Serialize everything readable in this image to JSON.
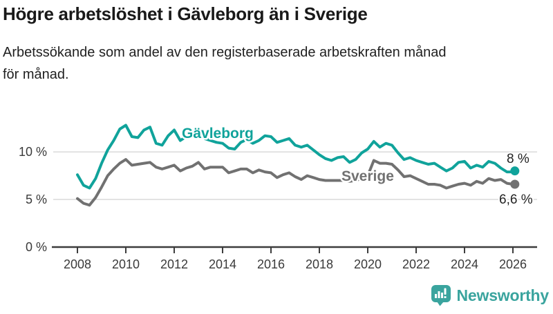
{
  "header": {
    "title": "Högre arbetslöshet i Gävleborg än i Sverige",
    "subtitle_lines": [
      "Arbetssökande som andel av den registerbaserade arbetskraften månad",
      "för månad."
    ]
  },
  "chart_data": {
    "type": "line",
    "title": "Högre arbetslöshet i Gävleborg än i Sverige",
    "subtitle": "Arbetssökande som andel av den registerbaserade arbetskraften månad för månad.",
    "xlabel": "",
    "ylabel": "",
    "x_unit": "decimal_year",
    "xlim": [
      2007.9,
      2027.0
    ],
    "ylim": [
      0,
      13.5
    ],
    "grid": "horizontal-only",
    "legend_position": "inline-labels",
    "yticks": [
      {
        "value": 0,
        "label": "0 %"
      },
      {
        "value": 5,
        "label": "5 %"
      },
      {
        "value": 10,
        "label": "10 %"
      }
    ],
    "xticks": [
      {
        "value": 2008,
        "label": "2008"
      },
      {
        "value": 2010,
        "label": "2010"
      },
      {
        "value": 2012,
        "label": "2012"
      },
      {
        "value": 2014,
        "label": "2014"
      },
      {
        "value": 2016,
        "label": "2016"
      },
      {
        "value": 2018,
        "label": "2018"
      },
      {
        "value": 2020,
        "label": "2020"
      },
      {
        "value": 2022,
        "label": "2022"
      },
      {
        "value": 2024,
        "label": "2024"
      },
      {
        "value": 2026,
        "label": "2026"
      }
    ],
    "series": [
      {
        "name": "Gävleborg",
        "color": "#10A39B",
        "end_label": "8 %",
        "end_value": 8.0,
        "points": [
          [
            2008.0,
            7.6
          ],
          [
            2008.25,
            6.5
          ],
          [
            2008.5,
            6.2
          ],
          [
            2008.75,
            7.2
          ],
          [
            2009.0,
            8.8
          ],
          [
            2009.25,
            10.2
          ],
          [
            2009.5,
            11.2
          ],
          [
            2009.75,
            12.4
          ],
          [
            2010.0,
            12.8
          ],
          [
            2010.25,
            11.6
          ],
          [
            2010.5,
            11.5
          ],
          [
            2010.75,
            12.3
          ],
          [
            2011.0,
            12.6
          ],
          [
            2011.25,
            10.9
          ],
          [
            2011.5,
            10.7
          ],
          [
            2011.75,
            11.7
          ],
          [
            2012.0,
            12.3
          ],
          [
            2012.25,
            11.2
          ],
          [
            2012.5,
            11.6
          ],
          [
            2012.75,
            12.0
          ],
          [
            2013.0,
            12.4
          ],
          [
            2013.25,
            11.4
          ],
          [
            2013.5,
            11.2
          ],
          [
            2013.75,
            11.0
          ],
          [
            2014.0,
            10.9
          ],
          [
            2014.25,
            10.4
          ],
          [
            2014.5,
            10.3
          ],
          [
            2014.75,
            11.0
          ],
          [
            2015.0,
            11.3
          ],
          [
            2015.25,
            10.9
          ],
          [
            2015.5,
            11.2
          ],
          [
            2015.75,
            11.7
          ],
          [
            2016.0,
            11.6
          ],
          [
            2016.25,
            11.0
          ],
          [
            2016.5,
            11.2
          ],
          [
            2016.75,
            11.4
          ],
          [
            2017.0,
            10.7
          ],
          [
            2017.25,
            10.5
          ],
          [
            2017.5,
            10.7
          ],
          [
            2017.75,
            10.2
          ],
          [
            2018.0,
            9.7
          ],
          [
            2018.25,
            9.3
          ],
          [
            2018.5,
            9.1
          ],
          [
            2018.75,
            9.4
          ],
          [
            2019.0,
            9.5
          ],
          [
            2019.25,
            8.9
          ],
          [
            2019.5,
            9.2
          ],
          [
            2019.75,
            9.9
          ],
          [
            2020.0,
            10.3
          ],
          [
            2020.25,
            11.1
          ],
          [
            2020.5,
            10.5
          ],
          [
            2020.75,
            10.9
          ],
          [
            2021.0,
            10.7
          ],
          [
            2021.25,
            9.9
          ],
          [
            2021.5,
            9.2
          ],
          [
            2021.75,
            9.4
          ],
          [
            2022.0,
            9.1
          ],
          [
            2022.25,
            8.9
          ],
          [
            2022.5,
            8.7
          ],
          [
            2022.75,
            8.8
          ],
          [
            2023.0,
            8.4
          ],
          [
            2023.25,
            8.0
          ],
          [
            2023.5,
            8.3
          ],
          [
            2023.75,
            8.9
          ],
          [
            2024.0,
            9.0
          ],
          [
            2024.25,
            8.3
          ],
          [
            2024.5,
            8.6
          ],
          [
            2024.75,
            8.4
          ],
          [
            2025.0,
            9.0
          ],
          [
            2025.25,
            8.8
          ],
          [
            2025.5,
            8.3
          ],
          [
            2025.75,
            7.9
          ],
          [
            2026.0,
            7.9
          ],
          [
            2026.08,
            8.0
          ]
        ]
      },
      {
        "name": "Sverige",
        "color": "#717171",
        "end_label": "6,6 %",
        "end_value": 6.6,
        "points": [
          [
            2008.0,
            5.1
          ],
          [
            2008.25,
            4.6
          ],
          [
            2008.5,
            4.4
          ],
          [
            2008.75,
            5.2
          ],
          [
            2009.0,
            6.3
          ],
          [
            2009.25,
            7.5
          ],
          [
            2009.5,
            8.2
          ],
          [
            2009.75,
            8.8
          ],
          [
            2010.0,
            9.2
          ],
          [
            2010.25,
            8.6
          ],
          [
            2010.5,
            8.7
          ],
          [
            2010.75,
            8.8
          ],
          [
            2011.0,
            8.9
          ],
          [
            2011.25,
            8.4
          ],
          [
            2011.5,
            8.2
          ],
          [
            2011.75,
            8.4
          ],
          [
            2012.0,
            8.6
          ],
          [
            2012.25,
            8.0
          ],
          [
            2012.5,
            8.3
          ],
          [
            2012.75,
            8.5
          ],
          [
            2013.0,
            8.9
          ],
          [
            2013.25,
            8.2
          ],
          [
            2013.5,
            8.4
          ],
          [
            2013.75,
            8.4
          ],
          [
            2014.0,
            8.4
          ],
          [
            2014.25,
            7.8
          ],
          [
            2014.5,
            8.0
          ],
          [
            2014.75,
            8.2
          ],
          [
            2015.0,
            8.2
          ],
          [
            2015.25,
            7.8
          ],
          [
            2015.5,
            8.1
          ],
          [
            2015.75,
            7.9
          ],
          [
            2016.0,
            7.8
          ],
          [
            2016.25,
            7.3
          ],
          [
            2016.5,
            7.6
          ],
          [
            2016.75,
            7.8
          ],
          [
            2017.0,
            7.4
          ],
          [
            2017.25,
            7.1
          ],
          [
            2017.5,
            7.5
          ],
          [
            2017.75,
            7.3
          ],
          [
            2018.0,
            7.1
          ],
          [
            2018.25,
            7.0
          ],
          [
            2018.5,
            7.0
          ],
          [
            2018.75,
            7.0
          ],
          [
            2019.0,
            7.0
          ],
          [
            2019.25,
            6.9
          ],
          [
            2019.5,
            7.0
          ],
          [
            2019.75,
            7.2
          ],
          [
            2020.0,
            7.5
          ],
          [
            2020.25,
            9.1
          ],
          [
            2020.5,
            8.8
          ],
          [
            2020.75,
            8.8
          ],
          [
            2021.0,
            8.7
          ],
          [
            2021.25,
            8.1
          ],
          [
            2021.5,
            7.4
          ],
          [
            2021.75,
            7.5
          ],
          [
            2022.0,
            7.2
          ],
          [
            2022.25,
            6.9
          ],
          [
            2022.5,
            6.6
          ],
          [
            2022.75,
            6.6
          ],
          [
            2023.0,
            6.5
          ],
          [
            2023.25,
            6.2
          ],
          [
            2023.5,
            6.4
          ],
          [
            2023.75,
            6.6
          ],
          [
            2024.0,
            6.7
          ],
          [
            2024.25,
            6.5
          ],
          [
            2024.5,
            6.9
          ],
          [
            2024.75,
            6.7
          ],
          [
            2025.0,
            7.2
          ],
          [
            2025.25,
            7.0
          ],
          [
            2025.5,
            7.1
          ],
          [
            2025.75,
            6.7
          ],
          [
            2026.0,
            6.6
          ],
          [
            2026.08,
            6.6
          ]
        ]
      }
    ]
  },
  "branding": {
    "logo_text": "Newsworthy",
    "logo_color": "#3AA49E"
  },
  "colors": {
    "teal_line": "#10A39B",
    "gray_line": "#717171",
    "gridline": "#DADADA",
    "axis_line": "#3C3C3C",
    "tick_label": "#3A3A3A",
    "end_label": "#222222",
    "title": "#191919"
  }
}
